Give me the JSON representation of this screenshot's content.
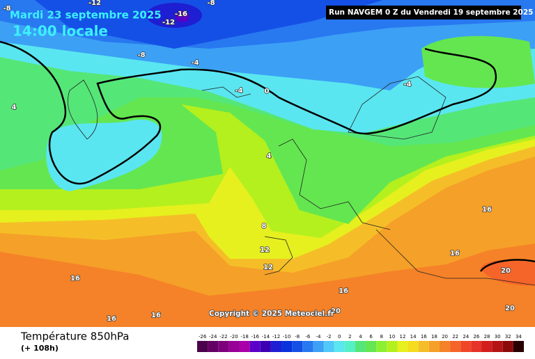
{
  "header": {
    "date": "Mardi 23 septembre 2025",
    "time": "14:00 locale",
    "run": "Run NAVGEM 0 Z du Vendredi 19 septembre 2025"
  },
  "copyright": "Copyright © 2025 Meteociel.fr",
  "footer": {
    "title": "Température 850hPa",
    "lead": "(+ 108h)"
  },
  "contour_labels": [
    -8,
    -12,
    -12,
    -16,
    -8,
    -8,
    -4,
    -4,
    4,
    0,
    -4,
    4,
    8,
    12,
    12,
    16,
    16,
    16,
    16,
    16,
    16,
    20,
    20,
    20
  ],
  "legend": {
    "labels": [
      -26,
      -24,
      -22,
      -20,
      -18,
      -16,
      -14,
      -12,
      -10,
      -8,
      -6,
      -4,
      -2,
      0,
      2,
      4,
      6,
      8,
      10,
      12,
      14,
      16,
      18,
      20,
      22,
      24,
      26,
      28,
      30,
      32,
      34
    ],
    "colors": [
      "#4b004b",
      "#640064",
      "#7d007d",
      "#960096",
      "#aa00aa",
      "#5a00c8",
      "#3c00b4",
      "#1e1ed2",
      "#0a32dc",
      "#1450e6",
      "#2878f0",
      "#3ca0f5",
      "#50c8fa",
      "#5ae6f0",
      "#55f0c8",
      "#55e678",
      "#64e650",
      "#8cf032",
      "#b4f01e",
      "#e6f01e",
      "#f5dc1e",
      "#f5be28",
      "#f5a028",
      "#f58228",
      "#f56428",
      "#f04628",
      "#e63228",
      "#d21e1e",
      "#b41414",
      "#8c0a0a",
      "#280000"
    ]
  }
}
